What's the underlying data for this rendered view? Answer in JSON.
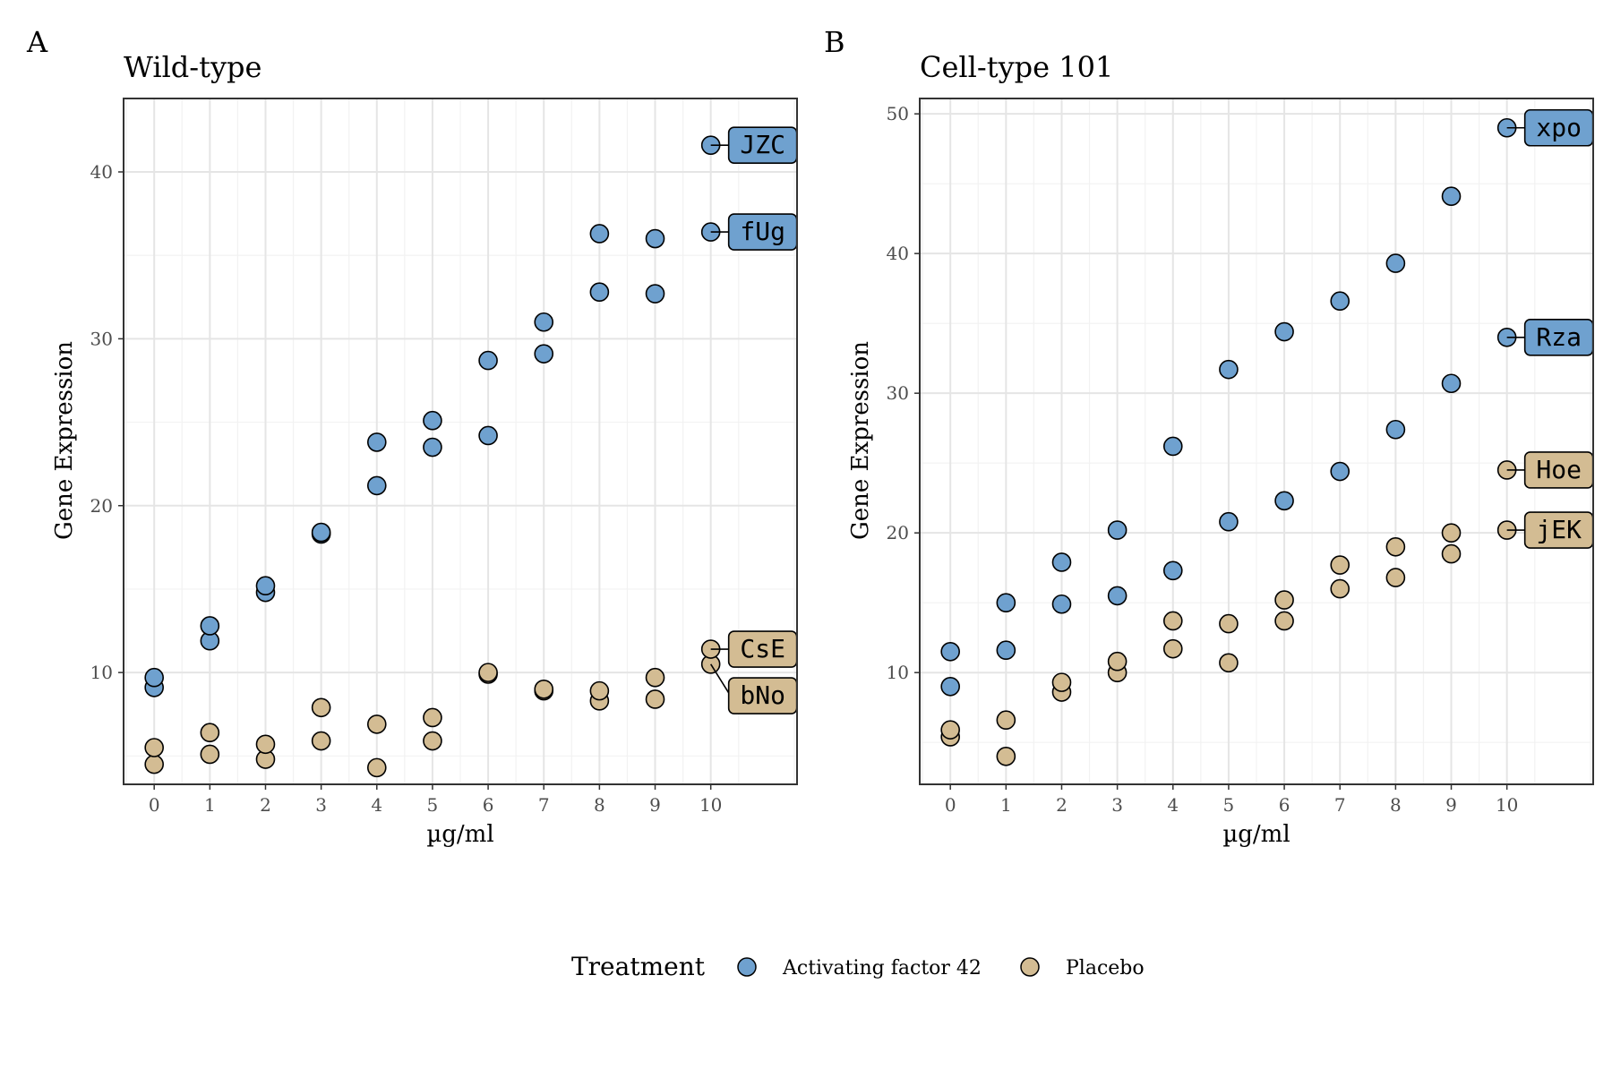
{
  "colors": {
    "activating": "#6fa1cf",
    "placebo": "#d3bc93",
    "outline": "#000000",
    "grid_major": "#e5e5e5",
    "grid_minor": "#f2f2f2",
    "tick_text": "#4d4d4d"
  },
  "legend": {
    "title": "Treatment",
    "items": [
      {
        "label": "Activating factor 42",
        "color_key": "activating"
      },
      {
        "label": "Placebo",
        "color_key": "placebo"
      }
    ]
  },
  "chart_data": [
    {
      "type": "scatter",
      "tag": "A",
      "title": "Wild-type",
      "xlabel": "µg/ml",
      "ylabel": "Gene Expression",
      "xlim": [
        -0.55,
        11.55
      ],
      "ylim": [
        3.3,
        44.4
      ],
      "x_ticks": [
        0,
        1,
        2,
        3,
        4,
        5,
        6,
        7,
        8,
        9,
        10
      ],
      "y_ticks": [
        10,
        20,
        30,
        40
      ],
      "grid": true,
      "series": [
        {
          "name": "Activating factor 42",
          "color_key": "activating",
          "points": [
            [
              0,
              9.1
            ],
            [
              0,
              9.7
            ],
            [
              1,
              11.9
            ],
            [
              1,
              12.8
            ],
            [
              2,
              14.8
            ],
            [
              2,
              15.2
            ],
            [
              3,
              18.3
            ],
            [
              3,
              18.4
            ],
            [
              4,
              21.2
            ],
            [
              4,
              23.8
            ],
            [
              5,
              23.5
            ],
            [
              5,
              25.1
            ],
            [
              6,
              24.2
            ],
            [
              6,
              28.7
            ],
            [
              7,
              29.1
            ],
            [
              7,
              31.0
            ],
            [
              8,
              32.8
            ],
            [
              8,
              36.3
            ],
            [
              9,
              32.7
            ],
            [
              9,
              36.0
            ],
            [
              10,
              36.4
            ],
            [
              10,
              41.6
            ]
          ]
        },
        {
          "name": "Placebo",
          "color_key": "placebo",
          "points": [
            [
              0,
              4.5
            ],
            [
              0,
              5.5
            ],
            [
              1,
              5.1
            ],
            [
              1,
              6.4
            ],
            [
              2,
              4.8
            ],
            [
              2,
              5.7
            ],
            [
              3,
              5.9
            ],
            [
              3,
              7.9
            ],
            [
              4,
              4.3
            ],
            [
              4,
              6.9
            ],
            [
              5,
              5.9
            ],
            [
              5,
              7.3
            ],
            [
              6,
              9.9
            ],
            [
              6,
              10.0
            ],
            [
              7,
              8.9
            ],
            [
              7,
              9.0
            ],
            [
              8,
              8.3
            ],
            [
              8,
              8.9
            ],
            [
              9,
              8.4
            ],
            [
              9,
              9.7
            ],
            [
              10,
              10.5
            ],
            [
              10,
              11.4
            ]
          ]
        }
      ],
      "annotations": [
        {
          "text": "JZC",
          "x": 10,
          "y": 41.6,
          "color_key": "activating"
        },
        {
          "text": "fUg",
          "x": 10,
          "y": 36.4,
          "color_key": "activating"
        },
        {
          "text": "CsE",
          "x": 10,
          "y": 11.4,
          "color_key": "placebo"
        },
        {
          "text": "bNo",
          "x": 10,
          "y": 10.5,
          "color_key": "placebo"
        }
      ]
    },
    {
      "type": "scatter",
      "tag": "B",
      "title": "Cell-type 101",
      "xlabel": "µg/ml",
      "ylabel": "Gene Expression",
      "xlim": [
        -0.55,
        11.55
      ],
      "ylim": [
        2.0,
        51.1
      ],
      "x_ticks": [
        0,
        1,
        2,
        3,
        4,
        5,
        6,
        7,
        8,
        9,
        10
      ],
      "y_ticks": [
        10,
        20,
        30,
        40,
        50
      ],
      "grid": true,
      "series": [
        {
          "name": "Activating factor 42",
          "color_key": "activating",
          "points": [
            [
              0,
              9.0
            ],
            [
              0,
              11.5
            ],
            [
              1,
              11.6
            ],
            [
              1,
              15.0
            ],
            [
              2,
              14.9
            ],
            [
              2,
              17.9
            ],
            [
              3,
              15.5
            ],
            [
              3,
              20.2
            ],
            [
              4,
              17.3
            ],
            [
              4,
              26.2
            ],
            [
              5,
              20.8
            ],
            [
              5,
              31.7
            ],
            [
              6,
              22.3
            ],
            [
              6,
              34.4
            ],
            [
              7,
              24.4
            ],
            [
              7,
              36.6
            ],
            [
              8,
              27.4
            ],
            [
              8,
              39.3
            ],
            [
              9,
              30.7
            ],
            [
              9,
              44.1
            ],
            [
              10,
              34.0
            ],
            [
              10,
              49.0
            ]
          ]
        },
        {
          "name": "Placebo",
          "color_key": "placebo",
          "points": [
            [
              0,
              5.4
            ],
            [
              0,
              5.9
            ],
            [
              1,
              4.0
            ],
            [
              1,
              6.6
            ],
            [
              2,
              8.6
            ],
            [
              2,
              9.3
            ],
            [
              3,
              10.0
            ],
            [
              3,
              10.8
            ],
            [
              4,
              11.7
            ],
            [
              4,
              13.7
            ],
            [
              5,
              10.7
            ],
            [
              5,
              13.5
            ],
            [
              6,
              13.7
            ],
            [
              6,
              15.2
            ],
            [
              7,
              16.0
            ],
            [
              7,
              17.7
            ],
            [
              8,
              16.8
            ],
            [
              8,
              19.0
            ],
            [
              9,
              18.5
            ],
            [
              9,
              20.0
            ],
            [
              10,
              20.2
            ],
            [
              10,
              24.5
            ]
          ]
        }
      ],
      "annotations": [
        {
          "text": "xpo",
          "x": 10,
          "y": 49.0,
          "color_key": "activating"
        },
        {
          "text": "Rza",
          "x": 10,
          "y": 34.0,
          "color_key": "activating"
        },
        {
          "text": "Hoe",
          "x": 10,
          "y": 24.5,
          "color_key": "placebo"
        },
        {
          "text": "jEK",
          "x": 10,
          "y": 20.2,
          "color_key": "placebo"
        }
      ]
    }
  ]
}
